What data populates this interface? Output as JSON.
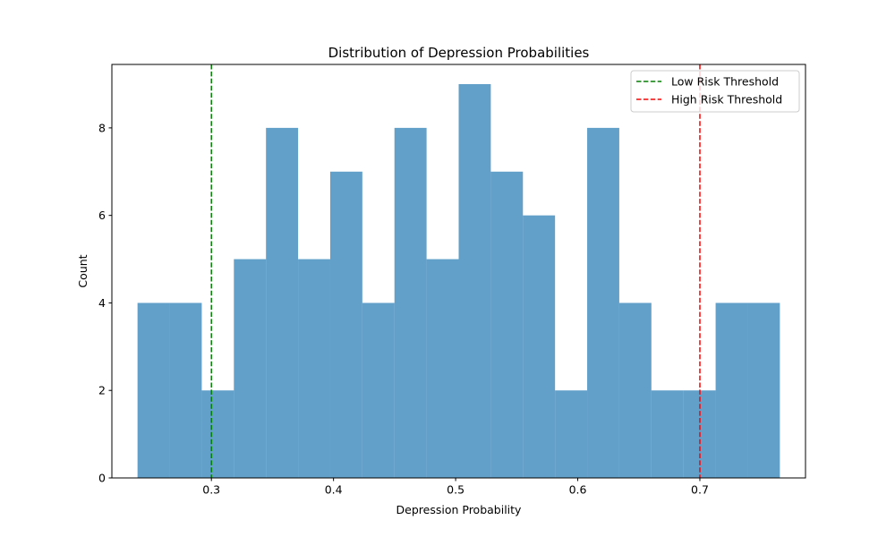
{
  "chart_data": {
    "type": "bar",
    "subtype": "histogram",
    "title": "Distribution of Depression Probabilities",
    "xlabel": "Depression Probability",
    "ylabel": "Count",
    "xlim": [
      0.2185,
      0.7865
    ],
    "ylim": [
      0,
      9.45
    ],
    "xticks": [
      0.3,
      0.4,
      0.5,
      0.6,
      0.7
    ],
    "xtick_labels": [
      "0.3",
      "0.4",
      "0.5",
      "0.6",
      "0.7"
    ],
    "yticks": [
      0,
      2,
      4,
      6,
      8
    ],
    "ytick_labels": [
      "0",
      "2",
      "4",
      "6",
      "8"
    ],
    "bar_color": "#1f77b4",
    "bar_alpha": 0.7,
    "bins": [
      {
        "x0": 0.2395,
        "x1": 0.2658,
        "count": 4
      },
      {
        "x0": 0.2658,
        "x1": 0.2921,
        "count": 4
      },
      {
        "x0": 0.2921,
        "x1": 0.3184,
        "count": 2
      },
      {
        "x0": 0.3184,
        "x1": 0.3447,
        "count": 5
      },
      {
        "x0": 0.3447,
        "x1": 0.371,
        "count": 8
      },
      {
        "x0": 0.371,
        "x1": 0.3973,
        "count": 5
      },
      {
        "x0": 0.3973,
        "x1": 0.4236,
        "count": 7
      },
      {
        "x0": 0.4236,
        "x1": 0.4499,
        "count": 4
      },
      {
        "x0": 0.4499,
        "x1": 0.4762,
        "count": 8
      },
      {
        "x0": 0.4762,
        "x1": 0.5025,
        "count": 5
      },
      {
        "x0": 0.5025,
        "x1": 0.5288,
        "count": 9
      },
      {
        "x0": 0.5288,
        "x1": 0.5551,
        "count": 7
      },
      {
        "x0": 0.5551,
        "x1": 0.5814,
        "count": 6
      },
      {
        "x0": 0.5814,
        "x1": 0.6077,
        "count": 2
      },
      {
        "x0": 0.6077,
        "x1": 0.634,
        "count": 8
      },
      {
        "x0": 0.634,
        "x1": 0.6603,
        "count": 4
      },
      {
        "x0": 0.6603,
        "x1": 0.6866,
        "count": 2
      },
      {
        "x0": 0.6866,
        "x1": 0.7129,
        "count": 2
      },
      {
        "x0": 0.7129,
        "x1": 0.7392,
        "count": 4
      },
      {
        "x0": 0.7392,
        "x1": 0.7655,
        "count": 4
      }
    ],
    "thresholds": [
      {
        "name": "Low Risk Threshold",
        "x": 0.3,
        "color": "#008000",
        "style": "dashed"
      },
      {
        "name": "High Risk Threshold",
        "x": 0.7,
        "color": "#ff0000",
        "style": "dashed"
      }
    ],
    "legend_position": "top-right",
    "grid": false
  }
}
